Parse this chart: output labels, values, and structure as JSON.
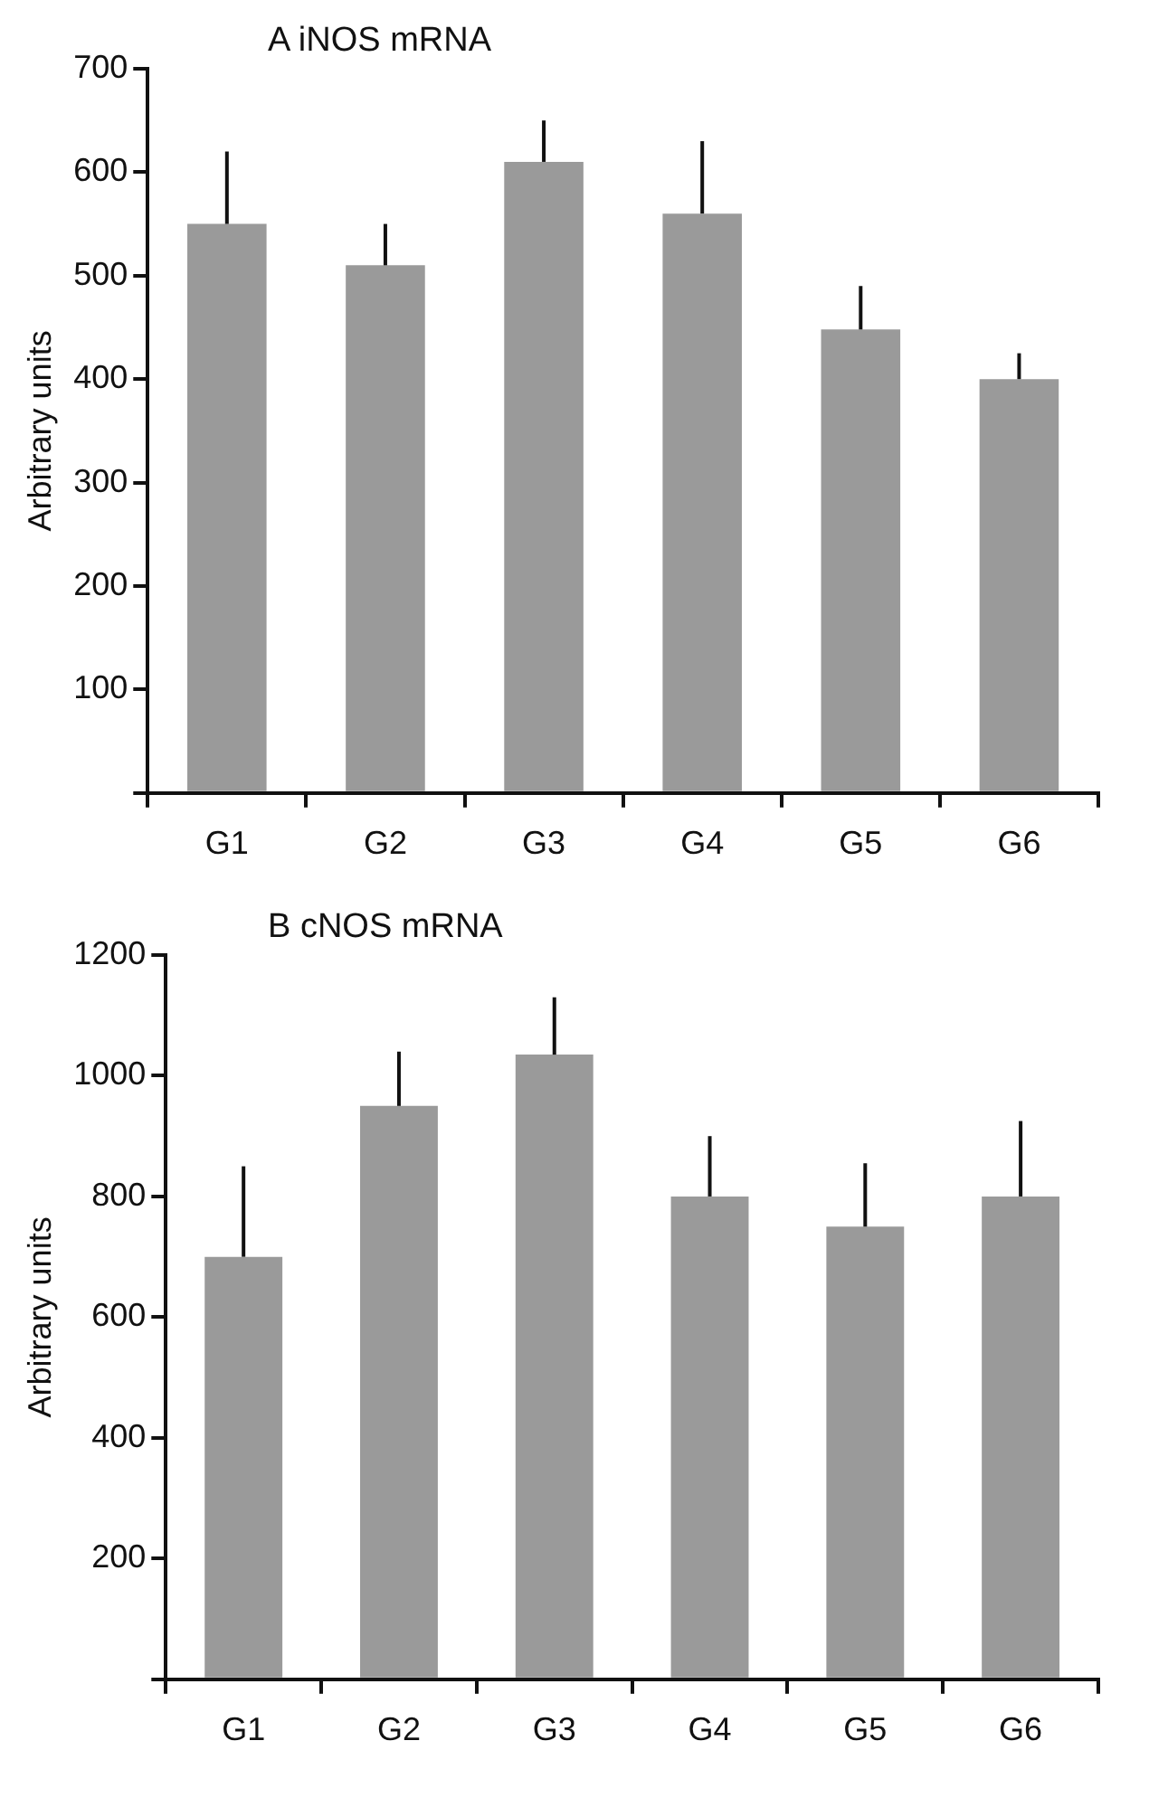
{
  "chart_data": [
    {
      "type": "bar",
      "title": "A iNOS mRNA",
      "ylabel": "Arbitrary units",
      "categories": [
        "G1",
        "G2",
        "G3",
        "G4",
        "G5",
        "G6"
      ],
      "series": [
        {
          "color": "#9a9a9a",
          "values": [
            550,
            510,
            610,
            560,
            448,
            400
          ],
          "errors": [
            [
              550,
              620
            ],
            [
              510,
              550
            ],
            [
              610,
              650
            ],
            [
              560,
              630
            ],
            [
              448,
              490
            ],
            [
              400,
              425
            ]
          ]
        }
      ],
      "ylim": [
        0,
        700
      ],
      "yticks": [
        {
          "value": 0,
          "label": null
        },
        100,
        200,
        300,
        400,
        500,
        600,
        700
      ],
      "grid": false,
      "legend": false
    },
    {
      "type": "bar",
      "title": "B cNOS mRNA",
      "ylabel": "Arbitrary units",
      "categories": [
        "G1",
        "G2",
        "G3",
        "G4",
        "G5",
        "G6"
      ],
      "series": [
        {
          "color": "#9a9a9a",
          "values": [
            700,
            950,
            1035,
            800,
            750,
            800
          ],
          "errors": [
            [
              700,
              850
            ],
            [
              950,
              1040
            ],
            [
              1035,
              1130
            ],
            [
              800,
              900
            ],
            [
              750,
              855
            ],
            [
              800,
              925
            ]
          ]
        }
      ],
      "ylim": [
        0,
        1200
      ],
      "yticks": [
        {
          "value": 0,
          "label": null
        },
        200,
        400,
        600,
        800,
        1000,
        1200
      ],
      "grid": false,
      "legend": false
    }
  ]
}
